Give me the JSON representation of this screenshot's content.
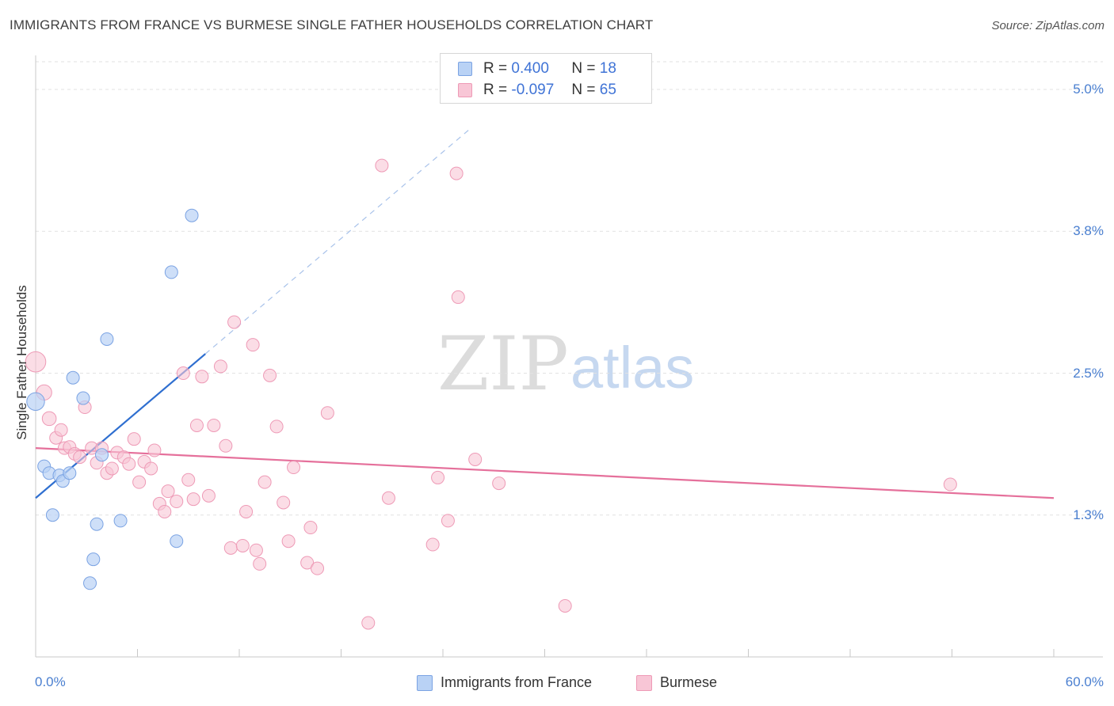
{
  "title": "IMMIGRANTS FROM FRANCE VS BURMESE SINGLE FATHER HOUSEHOLDS CORRELATION CHART",
  "source": "Source: ZipAtlas.com",
  "watermark": {
    "zip": "ZIP",
    "atlas": "atlas"
  },
  "colors": {
    "france_fill": "#b9d2f5",
    "france_stroke": "#7ba3e3",
    "france_line": "#2f6fd0",
    "burmese_fill": "#f8c6d6",
    "burmese_stroke": "#ee9ab6",
    "burmese_line": "#e5709b",
    "tick_text": "#4a7fd0",
    "grid": "#e2e2e2"
  },
  "legend": {
    "rows": [
      {
        "r_label": "R =",
        "r_value": "0.400",
        "n_label": "N =",
        "n_value": "18"
      },
      {
        "r_label": "R =",
        "r_value": "-0.097",
        "n_label": "N =",
        "n_value": "65"
      }
    ]
  },
  "bottom_legend": [
    "Immigrants from France",
    "Burmese"
  ],
  "chart_data": {
    "type": "scatter",
    "title": "IMMIGRANTS FROM FRANCE VS BURMESE SINGLE FATHER HOUSEHOLDS CORRELATION CHART",
    "xlabel": "",
    "ylabel": "Single Father Households",
    "xlim": [
      0,
      60
    ],
    "ylim": [
      0,
      5.3
    ],
    "x_tick_labels": [
      "0.0%",
      "60.0%"
    ],
    "y_ticks": [
      1.25,
      2.5,
      3.75,
      5.0
    ],
    "y_tick_labels": [
      "1.3%",
      "2.5%",
      "3.8%",
      "5.0%"
    ],
    "series": [
      {
        "name": "Immigrants from France",
        "r": 0.4,
        "n": 18,
        "points": [
          [
            0.0,
            2.25,
            14
          ],
          [
            0.5,
            1.68,
            10
          ],
          [
            0.8,
            1.62,
            10
          ],
          [
            1.0,
            1.25,
            10
          ],
          [
            1.4,
            1.6,
            10
          ],
          [
            1.6,
            1.55,
            10
          ],
          [
            2.0,
            1.62,
            10
          ],
          [
            2.2,
            2.46,
            10
          ],
          [
            2.8,
            2.28,
            10
          ],
          [
            3.2,
            0.65,
            10
          ],
          [
            3.4,
            0.86,
            10
          ],
          [
            3.6,
            1.17,
            10
          ],
          [
            3.9,
            1.78,
            10
          ],
          [
            4.2,
            2.8,
            10
          ],
          [
            5.0,
            1.2,
            10
          ],
          [
            8.0,
            3.39,
            10
          ],
          [
            8.3,
            1.02,
            10
          ],
          [
            9.2,
            3.89,
            10
          ]
        ],
        "trend": {
          "x": [
            0,
            10
          ],
          "y": [
            1.4,
            2.67
          ]
        },
        "trend_ext": {
          "x": [
            10,
            25.5
          ],
          "y": [
            2.67,
            4.64
          ]
        }
      },
      {
        "name": "Burmese",
        "r": -0.097,
        "n": 65,
        "points": [
          [
            0.0,
            2.6,
            16
          ],
          [
            0.5,
            2.33,
            12
          ],
          [
            0.8,
            2.1,
            11
          ],
          [
            1.2,
            1.93,
            10
          ],
          [
            1.5,
            2.0,
            10
          ],
          [
            1.7,
            1.84,
            10
          ],
          [
            2.0,
            1.85,
            10
          ],
          [
            2.3,
            1.79,
            10
          ],
          [
            2.6,
            1.76,
            10
          ],
          [
            2.9,
            2.2,
            10
          ],
          [
            3.3,
            1.84,
            10
          ],
          [
            3.6,
            1.71,
            10
          ],
          [
            3.9,
            1.84,
            10
          ],
          [
            4.2,
            1.62,
            10
          ],
          [
            4.5,
            1.66,
            10
          ],
          [
            4.8,
            1.8,
            10
          ],
          [
            5.2,
            1.76,
            10
          ],
          [
            5.5,
            1.7,
            10
          ],
          [
            5.8,
            1.92,
            10
          ],
          [
            6.1,
            1.54,
            10
          ],
          [
            6.4,
            1.72,
            10
          ],
          [
            6.8,
            1.66,
            10
          ],
          [
            7.0,
            1.82,
            10
          ],
          [
            7.3,
            1.35,
            10
          ],
          [
            7.6,
            1.28,
            10
          ],
          [
            7.8,
            1.46,
            10
          ],
          [
            8.3,
            1.37,
            10
          ],
          [
            8.7,
            2.5,
            10
          ],
          [
            9.0,
            1.56,
            10
          ],
          [
            9.3,
            1.39,
            10
          ],
          [
            9.5,
            2.04,
            10
          ],
          [
            9.8,
            2.47,
            10
          ],
          [
            10.2,
            1.42,
            10
          ],
          [
            10.5,
            2.04,
            10
          ],
          [
            10.9,
            2.56,
            10
          ],
          [
            11.2,
            1.86,
            10
          ],
          [
            11.5,
            0.96,
            10
          ],
          [
            11.7,
            2.95,
            10
          ],
          [
            12.2,
            0.98,
            10
          ],
          [
            12.4,
            1.28,
            10
          ],
          [
            12.8,
            2.75,
            10
          ],
          [
            13.0,
            0.94,
            10
          ],
          [
            13.2,
            0.82,
            10
          ],
          [
            13.5,
            1.54,
            10
          ],
          [
            13.8,
            2.48,
            10
          ],
          [
            14.2,
            2.03,
            10
          ],
          [
            14.6,
            1.36,
            10
          ],
          [
            14.9,
            1.02,
            10
          ],
          [
            15.2,
            1.67,
            10
          ],
          [
            16.0,
            0.83,
            10
          ],
          [
            16.2,
            1.14,
            10
          ],
          [
            16.6,
            0.78,
            10
          ],
          [
            17.2,
            2.15,
            10
          ],
          [
            19.6,
            0.3,
            10
          ],
          [
            20.4,
            4.33,
            10
          ],
          [
            20.8,
            1.4,
            10
          ],
          [
            23.4,
            0.99,
            10
          ],
          [
            23.7,
            1.58,
            10
          ],
          [
            24.3,
            1.2,
            10
          ],
          [
            24.8,
            4.26,
            10
          ],
          [
            24.9,
            3.17,
            10
          ],
          [
            25.9,
            1.74,
            10
          ],
          [
            27.3,
            1.53,
            10
          ],
          [
            31.2,
            0.45,
            10
          ],
          [
            53.9,
            1.52,
            10
          ]
        ],
        "trend": {
          "x": [
            0,
            60
          ],
          "y": [
            1.84,
            1.4
          ]
        }
      }
    ]
  }
}
